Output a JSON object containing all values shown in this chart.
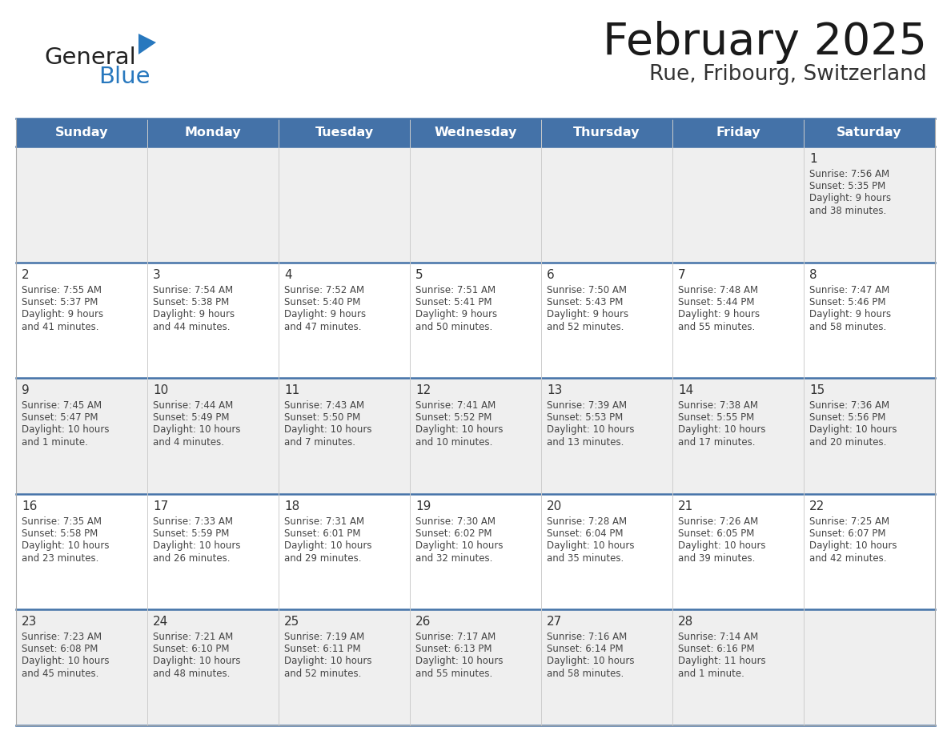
{
  "title": "February 2025",
  "subtitle": "Rue, Fribourg, Switzerland",
  "days_of_week": [
    "Sunday",
    "Monday",
    "Tuesday",
    "Wednesday",
    "Thursday",
    "Friday",
    "Saturday"
  ],
  "header_bg": "#4472A8",
  "header_text": "#FFFFFF",
  "row_bg_light": "#EFEFEF",
  "row_bg_white": "#FFFFFF",
  "separator_color": "#4472A8",
  "text_color": "#444444",
  "day_num_color": "#333333",
  "calendar_data": [
    [
      {
        "day": null,
        "sunrise": null,
        "sunset": null,
        "daylight": null
      },
      {
        "day": null,
        "sunrise": null,
        "sunset": null,
        "daylight": null
      },
      {
        "day": null,
        "sunrise": null,
        "sunset": null,
        "daylight": null
      },
      {
        "day": null,
        "sunrise": null,
        "sunset": null,
        "daylight": null
      },
      {
        "day": null,
        "sunrise": null,
        "sunset": null,
        "daylight": null
      },
      {
        "day": null,
        "sunrise": null,
        "sunset": null,
        "daylight": null
      },
      {
        "day": 1,
        "sunrise": "7:56 AM",
        "sunset": "5:35 PM",
        "daylight": "9 hours\nand 38 minutes."
      }
    ],
    [
      {
        "day": 2,
        "sunrise": "7:55 AM",
        "sunset": "5:37 PM",
        "daylight": "9 hours\nand 41 minutes."
      },
      {
        "day": 3,
        "sunrise": "7:54 AM",
        "sunset": "5:38 PM",
        "daylight": "9 hours\nand 44 minutes."
      },
      {
        "day": 4,
        "sunrise": "7:52 AM",
        "sunset": "5:40 PM",
        "daylight": "9 hours\nand 47 minutes."
      },
      {
        "day": 5,
        "sunrise": "7:51 AM",
        "sunset": "5:41 PM",
        "daylight": "9 hours\nand 50 minutes."
      },
      {
        "day": 6,
        "sunrise": "7:50 AM",
        "sunset": "5:43 PM",
        "daylight": "9 hours\nand 52 minutes."
      },
      {
        "day": 7,
        "sunrise": "7:48 AM",
        "sunset": "5:44 PM",
        "daylight": "9 hours\nand 55 minutes."
      },
      {
        "day": 8,
        "sunrise": "7:47 AM",
        "sunset": "5:46 PM",
        "daylight": "9 hours\nand 58 minutes."
      }
    ],
    [
      {
        "day": 9,
        "sunrise": "7:45 AM",
        "sunset": "5:47 PM",
        "daylight": "10 hours\nand 1 minute."
      },
      {
        "day": 10,
        "sunrise": "7:44 AM",
        "sunset": "5:49 PM",
        "daylight": "10 hours\nand 4 minutes."
      },
      {
        "day": 11,
        "sunrise": "7:43 AM",
        "sunset": "5:50 PM",
        "daylight": "10 hours\nand 7 minutes."
      },
      {
        "day": 12,
        "sunrise": "7:41 AM",
        "sunset": "5:52 PM",
        "daylight": "10 hours\nand 10 minutes."
      },
      {
        "day": 13,
        "sunrise": "7:39 AM",
        "sunset": "5:53 PM",
        "daylight": "10 hours\nand 13 minutes."
      },
      {
        "day": 14,
        "sunrise": "7:38 AM",
        "sunset": "5:55 PM",
        "daylight": "10 hours\nand 17 minutes."
      },
      {
        "day": 15,
        "sunrise": "7:36 AM",
        "sunset": "5:56 PM",
        "daylight": "10 hours\nand 20 minutes."
      }
    ],
    [
      {
        "day": 16,
        "sunrise": "7:35 AM",
        "sunset": "5:58 PM",
        "daylight": "10 hours\nand 23 minutes."
      },
      {
        "day": 17,
        "sunrise": "7:33 AM",
        "sunset": "5:59 PM",
        "daylight": "10 hours\nand 26 minutes."
      },
      {
        "day": 18,
        "sunrise": "7:31 AM",
        "sunset": "6:01 PM",
        "daylight": "10 hours\nand 29 minutes."
      },
      {
        "day": 19,
        "sunrise": "7:30 AM",
        "sunset": "6:02 PM",
        "daylight": "10 hours\nand 32 minutes."
      },
      {
        "day": 20,
        "sunrise": "7:28 AM",
        "sunset": "6:04 PM",
        "daylight": "10 hours\nand 35 minutes."
      },
      {
        "day": 21,
        "sunrise": "7:26 AM",
        "sunset": "6:05 PM",
        "daylight": "10 hours\nand 39 minutes."
      },
      {
        "day": 22,
        "sunrise": "7:25 AM",
        "sunset": "6:07 PM",
        "daylight": "10 hours\nand 42 minutes."
      }
    ],
    [
      {
        "day": 23,
        "sunrise": "7:23 AM",
        "sunset": "6:08 PM",
        "daylight": "10 hours\nand 45 minutes."
      },
      {
        "day": 24,
        "sunrise": "7:21 AM",
        "sunset": "6:10 PM",
        "daylight": "10 hours\nand 48 minutes."
      },
      {
        "day": 25,
        "sunrise": "7:19 AM",
        "sunset": "6:11 PM",
        "daylight": "10 hours\nand 52 minutes."
      },
      {
        "day": 26,
        "sunrise": "7:17 AM",
        "sunset": "6:13 PM",
        "daylight": "10 hours\nand 55 minutes."
      },
      {
        "day": 27,
        "sunrise": "7:16 AM",
        "sunset": "6:14 PM",
        "daylight": "10 hours\nand 58 minutes."
      },
      {
        "day": 28,
        "sunrise": "7:14 AM",
        "sunset": "6:16 PM",
        "daylight": "11 hours\nand 1 minute."
      },
      {
        "day": null,
        "sunrise": null,
        "sunset": null,
        "daylight": null
      }
    ]
  ],
  "logo_color_general": "#222222",
  "logo_color_blue": "#2878BE",
  "logo_triangle_color": "#2878BE"
}
